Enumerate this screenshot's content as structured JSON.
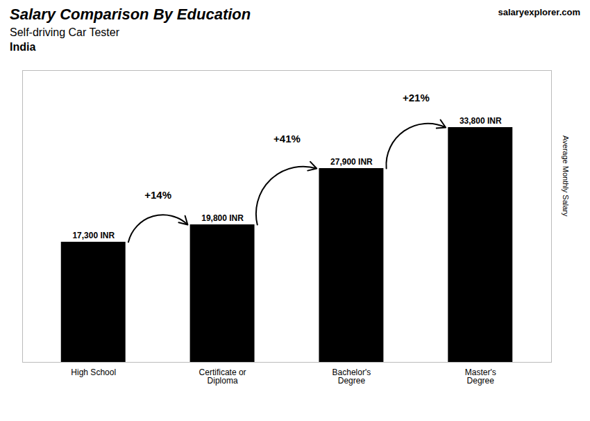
{
  "chart_data": {
    "type": "bar",
    "title": "Salary Comparison By Education",
    "subtitle": "Self-driving Car Tester",
    "annotations": [
      "India",
      "salaryexplorer.com"
    ],
    "categories": [
      "High School",
      "Certificate or\nDiploma",
      "Bachelor's\nDegree",
      "Master's\nDegree"
    ],
    "values": [
      17300,
      19800,
      27900,
      33800
    ],
    "value_labels": [
      "17,300 INR",
      "19,800 INR",
      "27,900 INR",
      "33,800 INR"
    ],
    "data_labels": true,
    "changes": [
      {
        "from": "High School",
        "to": "Certificate or\nDiploma",
        "label": "+14%"
      },
      {
        "from": "Certificate or\nDiploma",
        "to": "Bachelor's\nDegree",
        "label": "+41%"
      },
      {
        "from": "Bachelor's\nDegree",
        "to": "Master's\nDegree",
        "label": "+21%"
      }
    ],
    "ylabel": "Average Monthly Salary",
    "ylim": [
      0,
      42000
    ],
    "tick_labels": "x",
    "grid": false
  }
}
